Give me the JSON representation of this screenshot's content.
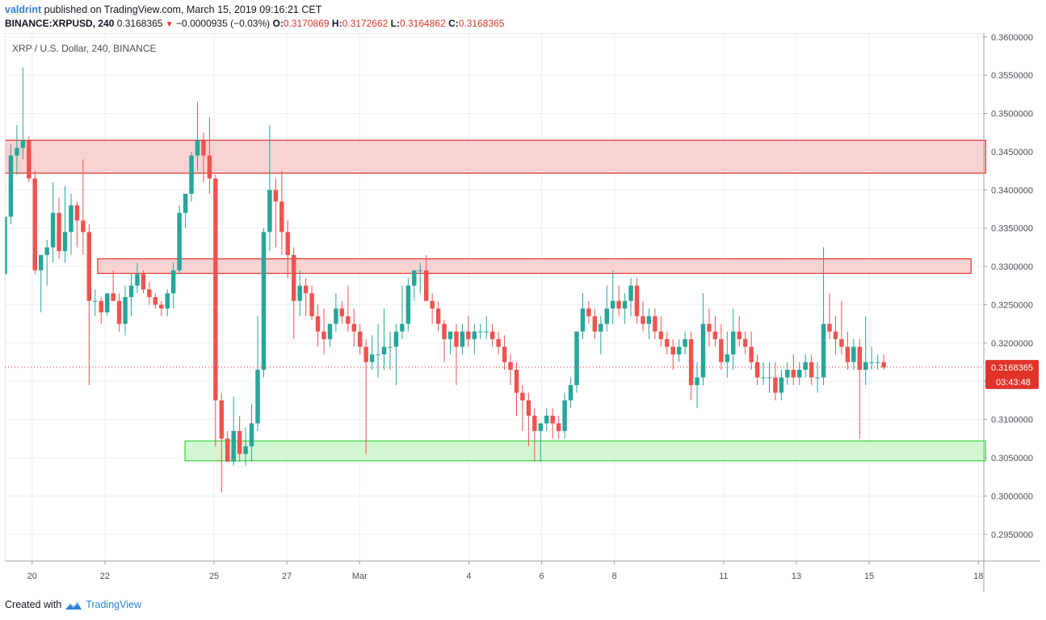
{
  "header": {
    "author": "valdrint",
    "published_text": " published on TradingView.com, March 15, 2019 09:16:21 CET",
    "symbol": "BINANCE:XRPUSD, 240",
    "last": "0.3168365",
    "change_arrow": "▼",
    "change": "−0.0000935 (−0.03%)",
    "o_label": "O:",
    "o_value": "0.3170869",
    "h_label": "H:",
    "h_value": "0.3172662",
    "l_label": "L:",
    "l_value": "0.3164862",
    "c_label": "C:",
    "c_value": "0.3168365"
  },
  "legend": "XRP / U.S. Dollar, 240, BINANCE",
  "footer": {
    "created_with": "Created with",
    "brand": "TradingView",
    "logo_icon": "tradingview-logo-icon"
  },
  "price_tag": {
    "value": "0.3168365",
    "countdown": "03:43:48",
    "color": "#e0342b"
  },
  "colors": {
    "up": "#26a69a",
    "down": "#ef5350",
    "resistance_fill": "#f8c8c8",
    "resistance_line": "#e0342b",
    "support_fill": "#c8f5c8",
    "support_line": "#3ad53a"
  },
  "chart_data": {
    "type": "candlestick",
    "title": "XRP / U.S. Dollar, 240, BINANCE",
    "ylim": [
      0.2915,
      0.3605
    ],
    "y_ticks": [
      "0.3600000",
      "0.3550000",
      "0.3500000",
      "0.3450000",
      "0.3400000",
      "0.3350000",
      "0.3300000",
      "0.3250000",
      "0.3200000",
      "0.3150000",
      "0.3100000",
      "0.3050000",
      "0.3000000",
      "0.2950000"
    ],
    "x_ticks": [
      {
        "label": "20",
        "day": 20.0
      },
      {
        "label": "22",
        "day": 22.0
      },
      {
        "label": "25",
        "day": 25.0
      },
      {
        "label": "27",
        "day": 27.0
      },
      {
        "label": "Mar",
        "day": 29.0
      },
      {
        "label": "4",
        "day": 32.0
      },
      {
        "label": "6",
        "day": 34.0
      },
      {
        "label": "8",
        "day": 36.0
      },
      {
        "label": "11",
        "day": 39.0
      },
      {
        "label": "13",
        "day": 41.0
      },
      {
        "label": "15",
        "day": 43.0
      },
      {
        "label": "18",
        "day": 46.0
      }
    ],
    "zones": [
      {
        "kind": "resistance",
        "y0": 0.3422,
        "y1": 0.3465,
        "x0": 19.0,
        "x1": 46.2
      },
      {
        "kind": "resistance",
        "y0": 0.3291,
        "y1": 0.331,
        "x0": 21.8,
        "x1": 45.8
      },
      {
        "kind": "support",
        "y0": 0.3046,
        "y1": 0.3072,
        "x0": 24.2,
        "x1": 46.2
      }
    ],
    "candles_ohlc": [
      [
        0.329,
        0.337,
        0.327,
        0.3365
      ],
      [
        0.3365,
        0.346,
        0.3355,
        0.3445
      ],
      [
        0.3445,
        0.3485,
        0.342,
        0.3455
      ],
      [
        0.3455,
        0.356,
        0.344,
        0.3465
      ],
      [
        0.3465,
        0.347,
        0.341,
        0.3415
      ],
      [
        0.3415,
        0.3425,
        0.329,
        0.3295
      ],
      [
        0.3295,
        0.331,
        0.324,
        0.3315
      ],
      [
        0.3315,
        0.3335,
        0.3275,
        0.3325
      ],
      [
        0.3325,
        0.341,
        0.3305,
        0.337
      ],
      [
        0.337,
        0.339,
        0.331,
        0.332
      ],
      [
        0.332,
        0.3405,
        0.3305,
        0.3345
      ],
      [
        0.3345,
        0.3395,
        0.3315,
        0.338
      ],
      [
        0.338,
        0.3385,
        0.3325,
        0.336
      ],
      [
        0.336,
        0.344,
        0.3315,
        0.3345
      ],
      [
        0.3345,
        0.3355,
        0.3145,
        0.3255
      ],
      [
        0.3255,
        0.327,
        0.3235,
        0.3255
      ],
      [
        0.3255,
        0.326,
        0.3225,
        0.324
      ],
      [
        0.324,
        0.3265,
        0.3235,
        0.3265
      ],
      [
        0.3265,
        0.3295,
        0.3255,
        0.3255
      ],
      [
        0.3255,
        0.3265,
        0.3215,
        0.3225
      ],
      [
        0.3225,
        0.3275,
        0.321,
        0.326
      ],
      [
        0.326,
        0.329,
        0.3235,
        0.3275
      ],
      [
        0.3275,
        0.3305,
        0.3265,
        0.329
      ],
      [
        0.329,
        0.3295,
        0.3265,
        0.327
      ],
      [
        0.327,
        0.328,
        0.325,
        0.326
      ],
      [
        0.326,
        0.3265,
        0.3245,
        0.325
      ],
      [
        0.325,
        0.3255,
        0.3235,
        0.3245
      ],
      [
        0.3245,
        0.327,
        0.3235,
        0.3265
      ],
      [
        0.3265,
        0.3305,
        0.3245,
        0.3295
      ],
      [
        0.3295,
        0.338,
        0.329,
        0.337
      ],
      [
        0.337,
        0.3395,
        0.335,
        0.3395
      ],
      [
        0.3395,
        0.345,
        0.3385,
        0.3445
      ],
      [
        0.3445,
        0.3515,
        0.3425,
        0.3465
      ],
      [
        0.3465,
        0.3475,
        0.341,
        0.3445
      ],
      [
        0.3445,
        0.3495,
        0.3395,
        0.3415
      ],
      [
        0.3415,
        0.342,
        0.3065,
        0.3125
      ],
      [
        0.3125,
        0.3135,
        0.3005,
        0.3075
      ],
      [
        0.3075,
        0.3085,
        0.3045,
        0.3045
      ],
      [
        0.3045,
        0.313,
        0.304,
        0.3085
      ],
      [
        0.3085,
        0.3105,
        0.3045,
        0.3055
      ],
      [
        0.3055,
        0.309,
        0.304,
        0.3065
      ],
      [
        0.3065,
        0.312,
        0.3045,
        0.3095
      ],
      [
        0.3095,
        0.3235,
        0.3085,
        0.3165
      ],
      [
        0.3165,
        0.335,
        0.3155,
        0.3345
      ],
      [
        0.3345,
        0.3485,
        0.332,
        0.34
      ],
      [
        0.34,
        0.3415,
        0.3325,
        0.3385
      ],
      [
        0.3385,
        0.3425,
        0.3315,
        0.3345
      ],
      [
        0.3345,
        0.336,
        0.3285,
        0.3315
      ],
      [
        0.3315,
        0.3325,
        0.3205,
        0.3255
      ],
      [
        0.3255,
        0.3295,
        0.3235,
        0.3275
      ],
      [
        0.3275,
        0.3285,
        0.3235,
        0.3265
      ],
      [
        0.3265,
        0.3275,
        0.323,
        0.3235
      ],
      [
        0.3235,
        0.325,
        0.3195,
        0.3215
      ],
      [
        0.3215,
        0.3245,
        0.3185,
        0.3205
      ],
      [
        0.3205,
        0.3225,
        0.3195,
        0.3225
      ],
      [
        0.3225,
        0.3265,
        0.3215,
        0.3245
      ],
      [
        0.3245,
        0.3255,
        0.3225,
        0.3235
      ],
      [
        0.3235,
        0.3275,
        0.3215,
        0.3225
      ],
      [
        0.3225,
        0.3245,
        0.3195,
        0.3215
      ],
      [
        0.3215,
        0.3225,
        0.3185,
        0.3195
      ],
      [
        0.3195,
        0.3205,
        0.3055,
        0.3175
      ],
      [
        0.3175,
        0.321,
        0.3165,
        0.3185
      ],
      [
        0.3185,
        0.3225,
        0.3155,
        0.3185
      ],
      [
        0.3185,
        0.3245,
        0.3165,
        0.3195
      ],
      [
        0.3195,
        0.3215,
        0.3165,
        0.3195
      ],
      [
        0.3195,
        0.3225,
        0.3145,
        0.3215
      ],
      [
        0.3215,
        0.3275,
        0.3205,
        0.3225
      ],
      [
        0.3225,
        0.3285,
        0.3215,
        0.3275
      ],
      [
        0.3275,
        0.3295,
        0.3255,
        0.3295
      ],
      [
        0.3295,
        0.3305,
        0.3265,
        0.3295
      ],
      [
        0.3295,
        0.3315,
        0.3275,
        0.3255
      ],
      [
        0.3255,
        0.3265,
        0.3225,
        0.3245
      ],
      [
        0.3245,
        0.3255,
        0.3215,
        0.3225
      ],
      [
        0.3225,
        0.323,
        0.3175,
        0.3205
      ],
      [
        0.3205,
        0.3215,
        0.3185,
        0.3215
      ],
      [
        0.3215,
        0.3225,
        0.3145,
        0.3195
      ],
      [
        0.3195,
        0.3225,
        0.3185,
        0.3215
      ],
      [
        0.3215,
        0.3235,
        0.3195,
        0.3205
      ],
      [
        0.3205,
        0.3225,
        0.3185,
        0.3215
      ],
      [
        0.3215,
        0.3225,
        0.3205,
        0.3215
      ],
      [
        0.3215,
        0.3235,
        0.3205,
        0.3215
      ],
      [
        0.3215,
        0.3225,
        0.3195,
        0.3205
      ],
      [
        0.3205,
        0.3215,
        0.3185,
        0.3195
      ],
      [
        0.3195,
        0.321,
        0.3165,
        0.3175
      ],
      [
        0.3175,
        0.3185,
        0.3145,
        0.3165
      ],
      [
        0.3165,
        0.3175,
        0.3105,
        0.3135
      ],
      [
        0.3135,
        0.3145,
        0.3085,
        0.3125
      ],
      [
        0.3125,
        0.3135,
        0.3065,
        0.3105
      ],
      [
        0.3105,
        0.3115,
        0.3045,
        0.3085
      ],
      [
        0.3085,
        0.3095,
        0.3045,
        0.3095
      ],
      [
        0.3095,
        0.3115,
        0.3085,
        0.3105
      ],
      [
        0.3105,
        0.3115,
        0.3075,
        0.3095
      ],
      [
        0.3095,
        0.3105,
        0.3075,
        0.3085
      ],
      [
        0.3085,
        0.3135,
        0.3075,
        0.3125
      ],
      [
        0.3125,
        0.3155,
        0.3115,
        0.3145
      ],
      [
        0.3145,
        0.3215,
        0.3135,
        0.3215
      ],
      [
        0.3215,
        0.3265,
        0.3205,
        0.3245
      ],
      [
        0.3245,
        0.3255,
        0.3225,
        0.3235
      ],
      [
        0.3235,
        0.3245,
        0.3205,
        0.3215
      ],
      [
        0.3215,
        0.3235,
        0.3185,
        0.3225
      ],
      [
        0.3225,
        0.3275,
        0.3215,
        0.3245
      ],
      [
        0.3245,
        0.3295,
        0.3225,
        0.3255
      ],
      [
        0.3255,
        0.3275,
        0.3235,
        0.3245
      ],
      [
        0.3245,
        0.3265,
        0.3225,
        0.3255
      ],
      [
        0.3255,
        0.3285,
        0.3235,
        0.3275
      ],
      [
        0.3275,
        0.3285,
        0.3225,
        0.3235
      ],
      [
        0.3235,
        0.3255,
        0.3215,
        0.3225
      ],
      [
        0.3225,
        0.3245,
        0.3205,
        0.3235
      ],
      [
        0.3235,
        0.3245,
        0.3205,
        0.3215
      ],
      [
        0.3215,
        0.3235,
        0.3195,
        0.3205
      ],
      [
        0.3205,
        0.3215,
        0.3185,
        0.3195
      ],
      [
        0.3195,
        0.3205,
        0.3165,
        0.3185
      ],
      [
        0.3185,
        0.3205,
        0.3175,
        0.3195
      ],
      [
        0.3195,
        0.3215,
        0.3185,
        0.3205
      ],
      [
        0.3205,
        0.3215,
        0.3125,
        0.3145
      ],
      [
        0.3145,
        0.3175,
        0.3115,
        0.3155
      ],
      [
        0.3155,
        0.3265,
        0.3145,
        0.3225
      ],
      [
        0.3225,
        0.3245,
        0.3195,
        0.3215
      ],
      [
        0.3215,
        0.3235,
        0.3195,
        0.3205
      ],
      [
        0.3205,
        0.3225,
        0.3165,
        0.3175
      ],
      [
        0.3175,
        0.3215,
        0.3155,
        0.3185
      ],
      [
        0.3185,
        0.3245,
        0.3165,
        0.3215
      ],
      [
        0.3215,
        0.3235,
        0.3195,
        0.3205
      ],
      [
        0.3205,
        0.3215,
        0.3185,
        0.3195
      ],
      [
        0.3195,
        0.3215,
        0.3165,
        0.3175
      ],
      [
        0.3175,
        0.3185,
        0.3145,
        0.3155
      ],
      [
        0.3155,
        0.3175,
        0.3145,
        0.3155
      ],
      [
        0.3155,
        0.3175,
        0.3135,
        0.3155
      ],
      [
        0.3155,
        0.3175,
        0.3125,
        0.3135
      ],
      [
        0.3135,
        0.3165,
        0.3125,
        0.3155
      ],
      [
        0.3155,
        0.3175,
        0.3145,
        0.3165
      ],
      [
        0.3165,
        0.3185,
        0.3145,
        0.3155
      ],
      [
        0.3155,
        0.3175,
        0.3145,
        0.3165
      ],
      [
        0.3165,
        0.3185,
        0.3155,
        0.3175
      ],
      [
        0.3175,
        0.3185,
        0.3145,
        0.3155
      ],
      [
        0.3155,
        0.3175,
        0.3135,
        0.3155
      ],
      [
        0.3155,
        0.3325,
        0.3145,
        0.3225
      ],
      [
        0.3225,
        0.3265,
        0.3205,
        0.3215
      ],
      [
        0.3215,
        0.3235,
        0.3185,
        0.3205
      ],
      [
        0.3205,
        0.3255,
        0.3185,
        0.3195
      ],
      [
        0.3195,
        0.3215,
        0.3165,
        0.3175
      ],
      [
        0.3175,
        0.3205,
        0.3165,
        0.3195
      ],
      [
        0.3195,
        0.3205,
        0.3075,
        0.3165
      ],
      [
        0.3165,
        0.3235,
        0.3145,
        0.3175
      ],
      [
        0.3175,
        0.3195,
        0.3165,
        0.3175
      ],
      [
        0.3175,
        0.3185,
        0.3165,
        0.3175
      ],
      [
        0.3175,
        0.3185,
        0.3165,
        0.3168
      ]
    ]
  }
}
